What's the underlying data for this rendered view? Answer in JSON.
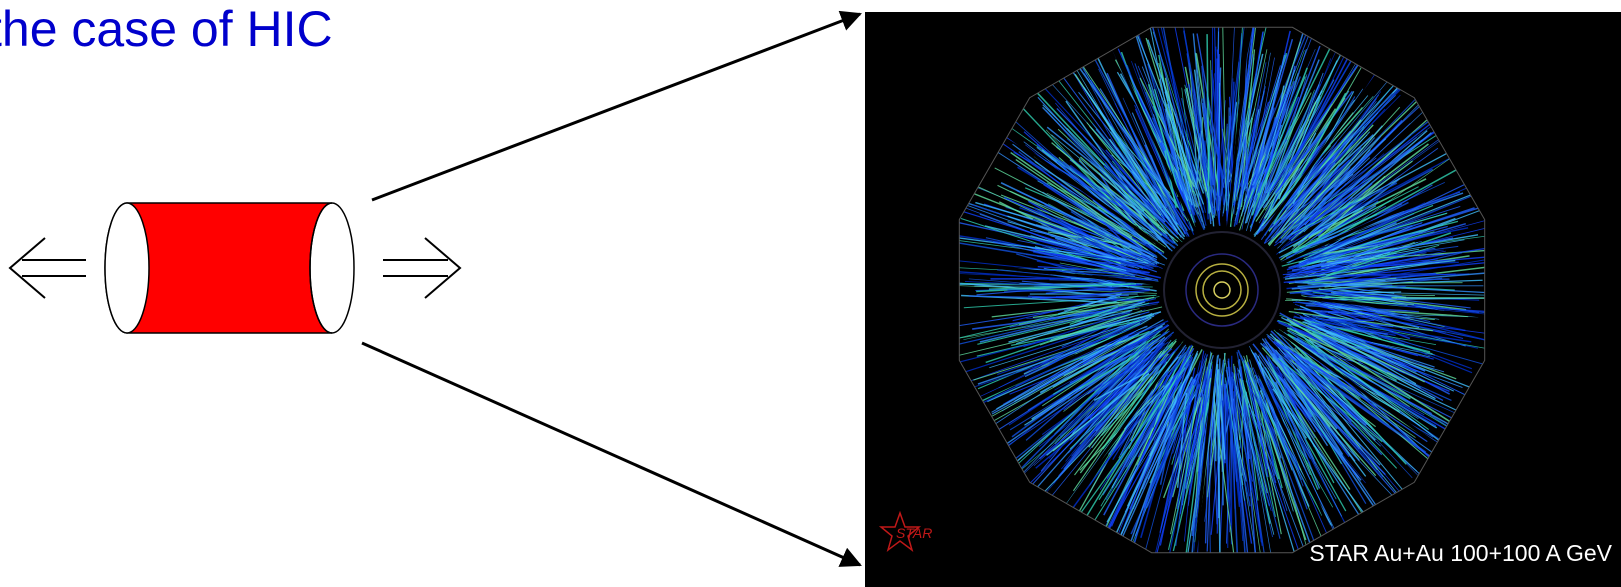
{
  "title": "the case of HIC",
  "image": {
    "logo": "STAR",
    "caption": "STAR Au+Au 100+100 A GeV"
  }
}
